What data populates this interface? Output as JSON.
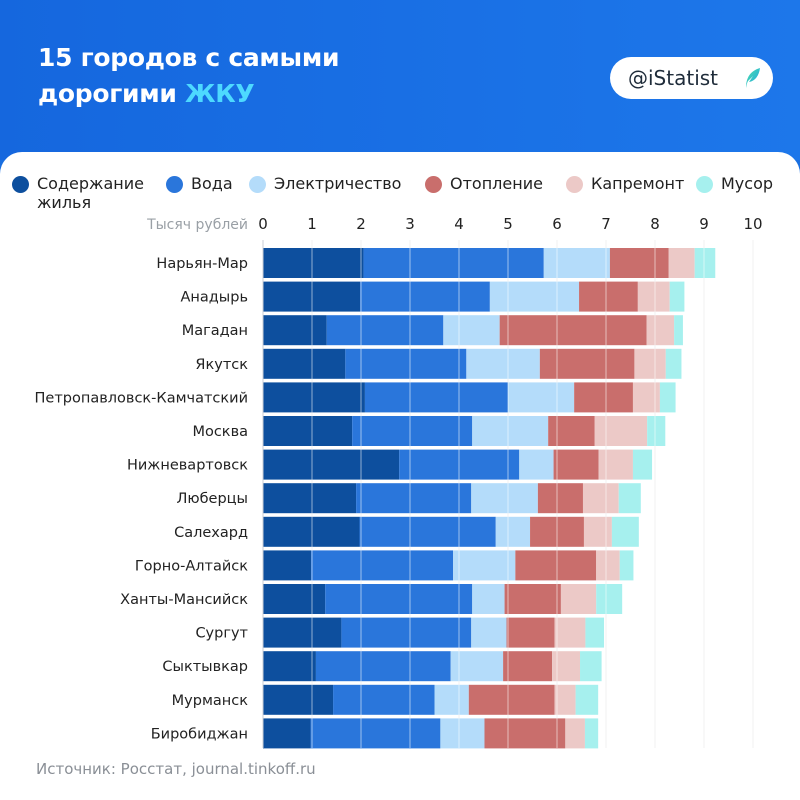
{
  "header": {
    "title_line1": "15 городов с самыми",
    "title_line2_prefix": "дорогими ",
    "title_line2_accent": "ЖКУ",
    "badge_text": "@iStatist",
    "badge_icon": "leaf-logo-icon"
  },
  "source": "Источник: Росстат, journal.tinkoff.ru",
  "colors": {
    "background": "#1a6fe0",
    "accent": "#4dd9ff",
    "panel": "#ffffff"
  },
  "chart_data": {
    "type": "bar",
    "orientation": "horizontal",
    "stacked": true,
    "unit_label": "Тысяч рублей",
    "xlim": [
      0,
      10
    ],
    "xticks": [
      "0",
      "1",
      "2",
      "3",
      "4",
      "5",
      "6",
      "7",
      "8",
      "9",
      "10"
    ],
    "grid": true,
    "legend_position": "top",
    "categories": [
      "Нарьян-Мар",
      "Анадырь",
      "Магадан",
      "Якутск",
      "Петропавловск-Камчатский",
      "Москва",
      "Нижневартовск",
      "Люберцы",
      "Салехард",
      "Горно-Алтайск",
      "Ханты-Мансийск",
      "Сургут",
      "Сыктывкар",
      "Мурманск",
      "Биробиджан"
    ],
    "series": [
      {
        "name": "Содержание жилья",
        "color": "#0d4f9e",
        "values": [
          2.05,
          1.98,
          1.3,
          1.68,
          2.08,
          1.82,
          2.78,
          1.9,
          1.97,
          0.98,
          1.27,
          1.6,
          1.08,
          1.43,
          0.97
        ]
      },
      {
        "name": "Вода",
        "color": "#2a76db",
        "values": [
          3.68,
          2.65,
          2.38,
          2.47,
          2.92,
          2.45,
          2.45,
          2.35,
          2.78,
          2.9,
          3.0,
          2.65,
          2.75,
          2.07,
          2.65
        ]
      },
      {
        "name": "Электричество",
        "color": "#b4dcfa",
        "values": [
          1.35,
          1.82,
          1.15,
          1.5,
          1.35,
          1.55,
          0.7,
          1.36,
          0.7,
          1.27,
          0.66,
          0.72,
          1.07,
          0.7,
          0.9
        ]
      },
      {
        "name": "Отопление",
        "color": "#c96e6c",
        "values": [
          1.2,
          1.2,
          3.0,
          1.93,
          1.2,
          0.95,
          0.92,
          0.92,
          1.1,
          1.65,
          1.15,
          0.98,
          1.0,
          1.75,
          1.65
        ]
      },
      {
        "name": "Капремонт",
        "color": "#ecc9c7",
        "values": [
          0.53,
          0.65,
          0.56,
          0.64,
          0.55,
          1.07,
          0.7,
          0.73,
          0.57,
          0.48,
          0.72,
          0.63,
          0.57,
          0.43,
          0.4
        ]
      },
      {
        "name": "Мусор",
        "color": "#a6f0ee",
        "values": [
          0.42,
          0.3,
          0.18,
          0.32,
          0.32,
          0.37,
          0.39,
          0.45,
          0.55,
          0.28,
          0.53,
          0.38,
          0.44,
          0.46,
          0.27
        ]
      }
    ]
  }
}
